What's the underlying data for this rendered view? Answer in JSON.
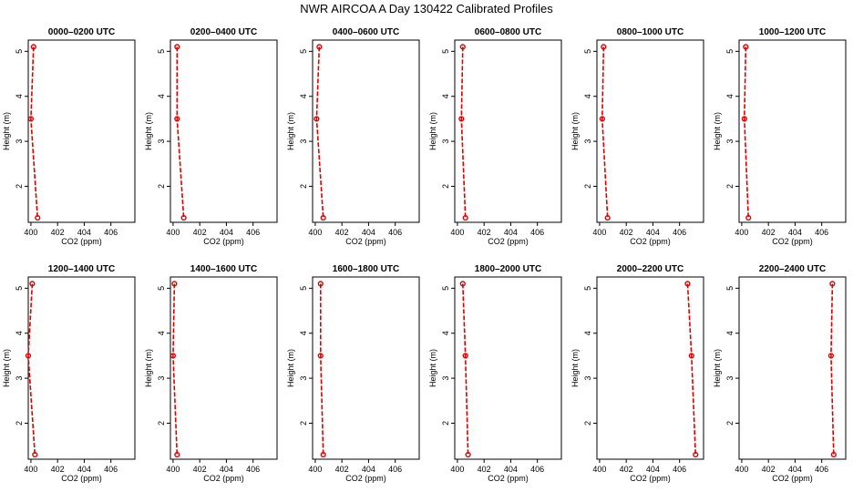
{
  "title": "NWR AIRCOA A  Day 130422  Calibrated Profiles",
  "colors": {
    "line": "#dd0000",
    "axis": "#000000"
  },
  "chart_data": [
    {
      "type": "line",
      "title": "0000–0200 UTC",
      "xlabel": "CO2 (ppm)",
      "ylabel": "Height (m)",
      "xlim": [
        399.8,
        407.8
      ],
      "ylim": [
        1.2,
        5.25
      ],
      "xticks": [
        400,
        402,
        404,
        406
      ],
      "yticks": [
        2,
        3,
        4,
        5
      ],
      "grid": false,
      "series": [
        {
          "x": [
            400.2,
            400.0,
            400.5
          ],
          "y": [
            5.1,
            3.5,
            1.3
          ]
        }
      ]
    },
    {
      "type": "line",
      "title": "0200–0400 UTC",
      "xlabel": "CO2 (ppm)",
      "ylabel": "Height (m)",
      "xlim": [
        399.8,
        407.8
      ],
      "ylim": [
        1.2,
        5.25
      ],
      "xticks": [
        400,
        402,
        404,
        406
      ],
      "yticks": [
        2,
        3,
        4,
        5
      ],
      "grid": false,
      "series": [
        {
          "x": [
            400.3,
            400.3,
            400.8
          ],
          "y": [
            5.1,
            3.5,
            1.3
          ]
        }
      ]
    },
    {
      "type": "line",
      "title": "0400–0600 UTC",
      "xlabel": "CO2 (ppm)",
      "ylabel": "Height (m)",
      "xlim": [
        399.8,
        407.8
      ],
      "ylim": [
        1.2,
        5.25
      ],
      "xticks": [
        400,
        402,
        404,
        406
      ],
      "yticks": [
        2,
        3,
        4,
        5
      ],
      "grid": false,
      "series": [
        {
          "x": [
            400.3,
            400.1,
            400.6
          ],
          "y": [
            5.1,
            3.5,
            1.3
          ]
        }
      ]
    },
    {
      "type": "line",
      "title": "0600–0800 UTC",
      "xlabel": "CO2 (ppm)",
      "ylabel": "Height (m)",
      "xlim": [
        399.8,
        407.8
      ],
      "ylim": [
        1.2,
        5.25
      ],
      "xticks": [
        400,
        402,
        404,
        406
      ],
      "yticks": [
        2,
        3,
        4,
        5
      ],
      "grid": false,
      "series": [
        {
          "x": [
            400.4,
            400.3,
            400.6
          ],
          "y": [
            5.1,
            3.5,
            1.3
          ]
        }
      ]
    },
    {
      "type": "line",
      "title": "0800–1000 UTC",
      "xlabel": "CO2 (ppm)",
      "ylabel": "Height (m)",
      "xlim": [
        399.8,
        407.8
      ],
      "ylim": [
        1.2,
        5.25
      ],
      "xticks": [
        400,
        402,
        404,
        406
      ],
      "yticks": [
        2,
        3,
        4,
        5
      ],
      "grid": false,
      "series": [
        {
          "x": [
            400.3,
            400.2,
            400.6
          ],
          "y": [
            5.1,
            3.5,
            1.3
          ]
        }
      ]
    },
    {
      "type": "line",
      "title": "1000–1200 UTC",
      "xlabel": "CO2 (ppm)",
      "ylabel": "Height (m)",
      "xlim": [
        399.8,
        407.8
      ],
      "ylim": [
        1.2,
        5.25
      ],
      "xticks": [
        400,
        402,
        404,
        406
      ],
      "yticks": [
        2,
        3,
        4,
        5
      ],
      "grid": false,
      "series": [
        {
          "x": [
            400.3,
            400.2,
            400.5
          ],
          "y": [
            5.1,
            3.5,
            1.3
          ]
        }
      ]
    },
    {
      "type": "line",
      "title": "1200–1400 UTC",
      "xlabel": "CO2 (ppm)",
      "ylabel": "Height (m)",
      "xlim": [
        399.8,
        407.8
      ],
      "ylim": [
        1.2,
        5.25
      ],
      "xticks": [
        400,
        402,
        404,
        406
      ],
      "yticks": [
        2,
        3,
        4,
        5
      ],
      "grid": false,
      "series": [
        {
          "x": [
            400.1,
            399.8,
            400.3
          ],
          "y": [
            5.1,
            3.5,
            1.3
          ]
        }
      ]
    },
    {
      "type": "line",
      "title": "1400–1600 UTC",
      "xlabel": "CO2 (ppm)",
      "ylabel": "Height (m)",
      "xlim": [
        399.8,
        407.8
      ],
      "ylim": [
        1.2,
        5.25
      ],
      "xticks": [
        400,
        402,
        404,
        406
      ],
      "yticks": [
        2,
        3,
        4,
        5
      ],
      "grid": false,
      "series": [
        {
          "x": [
            400.1,
            400.0,
            400.3
          ],
          "y": [
            5.1,
            3.5,
            1.3
          ]
        }
      ]
    },
    {
      "type": "line",
      "title": "1600–1800 UTC",
      "xlabel": "CO2 (ppm)",
      "ylabel": "Height (m)",
      "xlim": [
        399.8,
        407.8
      ],
      "ylim": [
        1.2,
        5.25
      ],
      "xticks": [
        400,
        402,
        404,
        406
      ],
      "yticks": [
        2,
        3,
        4,
        5
      ],
      "grid": false,
      "series": [
        {
          "x": [
            400.4,
            400.4,
            400.6
          ],
          "y": [
            5.1,
            3.5,
            1.3
          ]
        }
      ]
    },
    {
      "type": "line",
      "title": "1800–2000 UTC",
      "xlabel": "CO2 (ppm)",
      "ylabel": "Height (m)",
      "xlim": [
        399.8,
        407.8
      ],
      "ylim": [
        1.2,
        5.25
      ],
      "xticks": [
        400,
        402,
        404,
        406
      ],
      "yticks": [
        2,
        3,
        4,
        5
      ],
      "grid": false,
      "series": [
        {
          "x": [
            400.4,
            400.6,
            400.8
          ],
          "y": [
            5.1,
            3.5,
            1.3
          ]
        }
      ]
    },
    {
      "type": "line",
      "title": "2000–2200 UTC",
      "xlabel": "CO2 (ppm)",
      "ylabel": "Height (m)",
      "xlim": [
        399.8,
        407.8
      ],
      "ylim": [
        1.2,
        5.25
      ],
      "xticks": [
        400,
        402,
        404,
        406
      ],
      "yticks": [
        2,
        3,
        4,
        5
      ],
      "grid": false,
      "series": [
        {
          "x": [
            406.6,
            406.9,
            407.2
          ],
          "y": [
            5.1,
            3.5,
            1.3
          ]
        }
      ]
    },
    {
      "type": "line",
      "title": "2200–2400 UTC",
      "xlabel": "CO2 (ppm)",
      "ylabel": "Height (m)",
      "xlim": [
        399.8,
        407.8
      ],
      "ylim": [
        1.2,
        5.25
      ],
      "xticks": [
        400,
        402,
        404,
        406
      ],
      "yticks": [
        2,
        3,
        4,
        5
      ],
      "grid": false,
      "series": [
        {
          "x": [
            406.8,
            406.7,
            406.9
          ],
          "y": [
            5.1,
            3.5,
            1.3
          ]
        }
      ]
    }
  ]
}
